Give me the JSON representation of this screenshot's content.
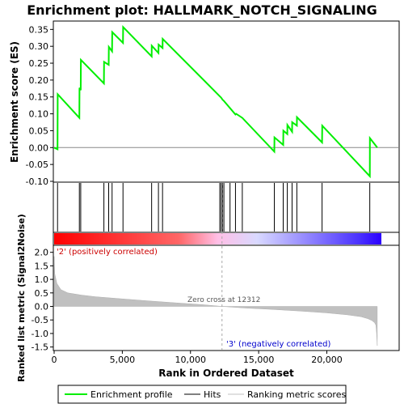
{
  "chart_data": [
    {
      "type": "line",
      "title": "Enrichment plot: HALLMARK_NOTCH_SIGNALING",
      "ylabel": "Enrichment score (ES)",
      "ylim": [
        -0.1,
        0.37
      ],
      "xlim": [
        0,
        24000
      ],
      "grid": false,
      "y_ticks": [
        "-0.10",
        "-0.05",
        "0.00",
        "0.05",
        "0.10",
        "0.15",
        "0.20",
        "0.25",
        "0.30",
        "0.35"
      ],
      "y_tick_values": [
        -0.1,
        -0.05,
        0.0,
        0.05,
        0.1,
        0.15,
        0.2,
        0.25,
        0.3,
        0.35
      ],
      "series": [
        {
          "name": "Enrichment profile",
          "color": "#00ff00",
          "x": [
            0,
            250,
            260,
            1850,
            1860,
            1950,
            1960,
            3650,
            3660,
            4000,
            4010,
            4250,
            4260,
            5050,
            5060,
            7150,
            7160,
            7650,
            7660,
            7950,
            7960,
            12150,
            12250,
            12350,
            12450,
            13300,
            13350,
            13800,
            16150,
            16160,
            16800,
            16810,
            17100,
            17110,
            17450,
            17460,
            17800,
            17810,
            19650,
            19660,
            23150,
            23160,
            23700
          ],
          "y": [
            0.0,
            -0.005,
            0.158,
            0.088,
            0.177,
            0.17,
            0.26,
            0.19,
            0.254,
            0.245,
            0.298,
            0.285,
            0.342,
            0.31,
            0.357,
            0.27,
            0.302,
            0.28,
            0.305,
            0.295,
            0.322,
            0.152,
            0.148,
            0.142,
            0.138,
            0.098,
            0.1,
            0.088,
            -0.012,
            0.03,
            0.008,
            0.05,
            0.04,
            0.067,
            0.047,
            0.075,
            0.065,
            0.09,
            0.015,
            0.065,
            -0.085,
            0.028,
            0.0
          ]
        }
      ]
    },
    {
      "type": "hits",
      "legend_label": "Hits",
      "hit_positions": [
        250,
        1850,
        1950,
        3650,
        4000,
        4250,
        5050,
        7150,
        7650,
        7950,
        12150,
        12250,
        12350,
        12450,
        12900,
        13300,
        13800,
        16150,
        16800,
        17100,
        17450,
        17800,
        19650,
        23150
      ],
      "colormap": [
        "#ff0000",
        "#ff9999",
        "#ffbfe6",
        "#d9d9ff",
        "#2b00ff"
      ]
    },
    {
      "type": "area",
      "xlabel": "Rank in Ordered Dataset",
      "ylabel": "Ranked list metric (Signal2Noise)",
      "ylim": [
        -1.6,
        2.2
      ],
      "xlim": [
        0,
        24000
      ],
      "x_ticks": [
        "0",
        "5,000",
        "10,000",
        "15,000",
        "20,000"
      ],
      "x_tick_values": [
        0,
        5000,
        10000,
        15000,
        20000
      ],
      "y_ticks": [
        "-1.5",
        "-1.0",
        "-0.5",
        "0.0",
        "0.5",
        "1.0",
        "1.5",
        "2.0"
      ],
      "y_tick_values": [
        -1.5,
        -1.0,
        -0.5,
        0.0,
        0.5,
        1.0,
        1.5,
        2.0
      ],
      "series": [
        {
          "name": "Ranking metric scores",
          "color": "#c0c0c0",
          "x": [
            0,
            50,
            200,
            500,
            1000,
            2000,
            3000,
            5000,
            7000,
            9000,
            11000,
            12312,
            14000,
            16000,
            18000,
            20000,
            21500,
            22500,
            23000,
            23300,
            23500,
            23600,
            23650,
            23700
          ],
          "y": [
            1.85,
            1.2,
            0.85,
            0.62,
            0.5,
            0.42,
            0.36,
            0.28,
            0.2,
            0.13,
            0.06,
            0.0,
            -0.06,
            -0.11,
            -0.17,
            -0.24,
            -0.31,
            -0.38,
            -0.45,
            -0.52,
            -0.6,
            -0.7,
            -1.0,
            -1.45
          ]
        }
      ],
      "annotations": {
        "zero_cross": "Zero cross at 12312",
        "zero_cross_value": 12312,
        "positive": "'2' (positively correlated)",
        "negative": "'3' (negatively correlated)"
      }
    }
  ],
  "legend": {
    "items": [
      {
        "label": "Enrichment profile",
        "color": "#00ff00"
      },
      {
        "label": "Hits",
        "color": "#000000"
      },
      {
        "label": "Ranking metric scores",
        "color": "#c0c0c0"
      }
    ]
  }
}
